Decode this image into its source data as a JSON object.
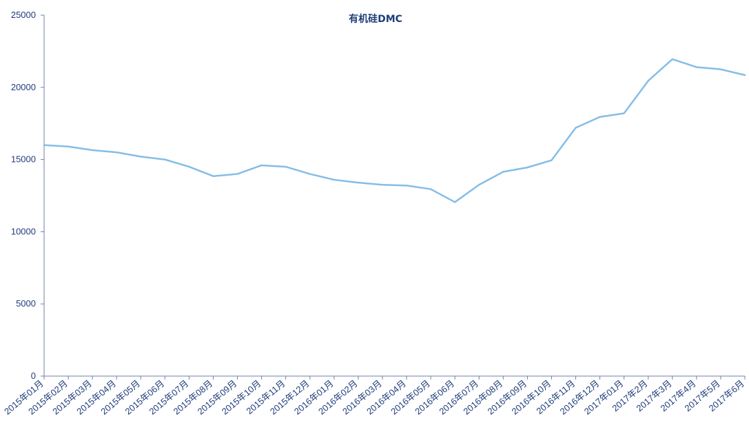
{
  "chart_data": {
    "type": "line",
    "title": "有机硅DMC",
    "xlabel": "",
    "ylabel": "",
    "ylim": [
      0,
      25000
    ],
    "yticks": [
      0,
      5000,
      10000,
      15000,
      20000,
      25000
    ],
    "grid": false,
    "legend": "none",
    "categories": [
      "2015年01月",
      "2015年02月",
      "2015年03月",
      "2015年04月",
      "2015年05月",
      "2015年06月",
      "2015年07月",
      "2015年08月",
      "2015年09月",
      "2015年10月",
      "2015年11月",
      "2015年12月",
      "2016年01月",
      "2016年02月",
      "2016年03月",
      "2016年04月",
      "2016年05月",
      "2016年06月",
      "2016年07月",
      "2016年08月",
      "2016年09月",
      "2016年10月",
      "2016年11月",
      "2016年12月",
      "2017年01月",
      "2017年2月",
      "2017年3月",
      "2017年4月",
      "2017年5月",
      "2017年6月"
    ],
    "series": [
      {
        "values": [
          16000,
          15900,
          15650,
          15500,
          15200,
          15000,
          14500,
          13850,
          14000,
          14600,
          14500,
          14000,
          13600,
          13400,
          13250,
          13200,
          12950,
          12050,
          13250,
          14150,
          14450,
          14950,
          17200,
          17950,
          18200,
          20450,
          21950,
          21400,
          21250,
          20850
        ]
      }
    ],
    "colors": {
      "line": "#85bde6",
      "axis": "#6f7fa8",
      "text": "#1f3e7a"
    }
  }
}
